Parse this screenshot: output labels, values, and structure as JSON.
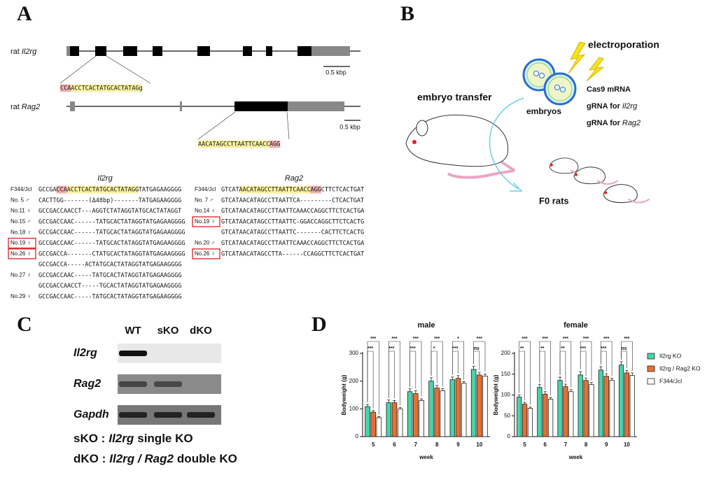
{
  "panel_labels": [
    "A",
    "B",
    "C",
    "D"
  ],
  "panel_a": {
    "genes": [
      {
        "prefix": "rat",
        "name": "Il2rg",
        "scale": "0.5 kbp",
        "guide": [
          {
            "t": "CCA",
            "s": "pam"
          },
          {
            "t": "ACCTCACTATGCACTATAGg",
            "s": "target"
          }
        ]
      },
      {
        "prefix": "rat",
        "name": "Rag2",
        "scale": "0.5 kbp",
        "guide": [
          {
            "t": "AACATAGCCTTAATTCAACC",
            "s": "target"
          },
          {
            "t": "AGG",
            "s": "pam"
          }
        ]
      }
    ],
    "alignments": [
      {
        "gene": "Il2rg",
        "rows": [
          {
            "label": "F344/Jcl",
            "boxed": false,
            "seq": [
              {
                "t": "GCCGA",
                "s": "n"
              },
              {
                "t": "CCA",
                "s": "pam"
              },
              {
                "t": "ACCTCACTATGCACTATAGG",
                "s": "target"
              },
              {
                "t": "TATGAGAAGGGG",
                "s": "n"
              }
            ]
          },
          {
            "label": "No. 5 ♂",
            "boxed": false,
            "seq": [
              {
                "t": "CACTTGG",
                "s": "n"
              },
              {
                "t": "-------(Δ48bp)-------",
                "s": "del"
              },
              {
                "t": "TATGAGAAGGGG",
                "s": "n"
              }
            ]
          },
          {
            "label": "No.11 ♀",
            "boxed": false,
            "seq": [
              {
                "t": "GCCGACCAACCT",
                "s": "n"
              },
              {
                "t": "---",
                "s": "del"
              },
              {
                "t": "AGGTCTATAGG",
                "s": "ins"
              },
              {
                "t": "TATGCACTATAGGT",
                "s": "n"
              }
            ]
          },
          {
            "label": "No.15 ♂",
            "boxed": false,
            "seq": [
              {
                "t": "GCCGACCAAC",
                "s": "n"
              },
              {
                "t": "------",
                "s": "del"
              },
              {
                "t": "TATGCACTATAGGTATGAGAAGGGG",
                "s": "n"
              }
            ]
          },
          {
            "label": "No.18 ♀",
            "boxed": false,
            "seq": [
              {
                "t": "GCCGACCAAC",
                "s": "n"
              },
              {
                "t": "------",
                "s": "del"
              },
              {
                "t": "TATGCACTATAGGTATGAGAAGGGG",
                "s": "n"
              }
            ]
          },
          {
            "label": "No.19 ♀",
            "boxed": true,
            "seq": [
              {
                "t": "GCCGACCAAC",
                "s": "n"
              },
              {
                "t": "------",
                "s": "del"
              },
              {
                "t": "TATGCACTATAGGTATGAGAAGGGG",
                "s": "n"
              }
            ]
          },
          {
            "label": "No.26 ♀",
            "boxed": true,
            "seq": [
              {
                "t": "GCCGACCA",
                "s": "n"
              },
              {
                "t": "-------",
                "s": "del"
              },
              {
                "t": "CTATGCACTATAGGTATGAGAAGGGG",
                "s": "n"
              }
            ]
          },
          {
            "label": null,
            "boxed": false,
            "seq": [
              {
                "t": "GCCGACCA",
                "s": "n"
              },
              {
                "t": "-----",
                "s": "del"
              },
              {
                "t": "ACTATGCACTATAGGTATGAGAAGGGG",
                "s": "n"
              }
            ]
          },
          {
            "label": "No.27 ♀",
            "boxed": false,
            "seq": [
              {
                "t": "GCCGACCAAC",
                "s": "n"
              },
              {
                "t": "-----",
                "s": "del"
              },
              {
                "t": "TATGCACTATAGGTATGAGAAGGGG",
                "s": "n"
              }
            ]
          },
          {
            "label": null,
            "boxed": false,
            "seq": [
              {
                "t": "GCCGACCAACCT",
                "s": "n"
              },
              {
                "t": "-----",
                "s": "del"
              },
              {
                "t": "TGCACTATAGGTATGAGAAGGGG",
                "s": "n"
              }
            ]
          },
          {
            "label": "No.29 ♀",
            "boxed": false,
            "seq": [
              {
                "t": "GCCGACCAAC",
                "s": "n"
              },
              {
                "t": "-----",
                "s": "del"
              },
              {
                "t": "TATGCACTATAGGTATGAGAAGGGG",
                "s": "n"
              }
            ]
          }
        ]
      },
      {
        "gene": "Rag2",
        "rows": [
          {
            "label": "F344/Jcl",
            "boxed": false,
            "seq": [
              {
                "t": "GTCAT",
                "s": "n"
              },
              {
                "t": "AACATAGCCTTAATTCAACC",
                "s": "target"
              },
              {
                "t": "AGG",
                "s": "pam"
              },
              {
                "t": "CTTCTCACTGAT",
                "s": "n"
              }
            ]
          },
          {
            "label": "No. 7 ♂",
            "boxed": false,
            "seq": [
              {
                "t": "GTCATAACATAGCCTTAATTCA",
                "s": "n"
              },
              {
                "t": "---------",
                "s": "del"
              },
              {
                "t": "CTCACTGAT",
                "s": "n"
              }
            ]
          },
          {
            "label": "No.14 ♀",
            "boxed": false,
            "seq": [
              {
                "t": "GTCATAACATAGCCTTAATTC",
                "s": "n"
              },
              {
                "t": "A",
                "s": "ins"
              },
              {
                "t": "AACCAGGCTTCTCACTGA",
                "s": "n"
              }
            ]
          },
          {
            "label": "No.19 ♀",
            "boxed": true,
            "seq": [
              {
                "t": "GTCATAACATAGCCTTAATTC",
                "s": "n"
              },
              {
                "t": "-",
                "s": "del"
              },
              {
                "t": "GG",
                "s": "ins"
              },
              {
                "t": "ACCAGGCTTCTCACTG",
                "s": "n"
              }
            ]
          },
          {
            "label": null,
            "boxed": false,
            "seq": [
              {
                "t": "GTCATAACATAGCCTTAATTC",
                "s": "n"
              },
              {
                "t": "-------",
                "s": "del"
              },
              {
                "t": "CA",
                "s": "ins"
              },
              {
                "t": "CTTCTCACTG",
                "s": "n"
              }
            ]
          },
          {
            "label": "No.20 ♂",
            "boxed": false,
            "seq": [
              {
                "t": "GTCATAACATAGCCTTAATTCAA",
                "s": "n"
              },
              {
                "t": "A",
                "s": "ins"
              },
              {
                "t": "CCAGGCTTCTCACTGA",
                "s": "n"
              }
            ]
          },
          {
            "label": "No.26 ♀",
            "boxed": true,
            "seq": [
              {
                "t": "GTCATAACATAGCCTTA",
                "s": "n"
              },
              {
                "t": "------",
                "s": "del"
              },
              {
                "t": "CCAGGCTTCTCACTGAT",
                "s": "n"
              }
            ]
          }
        ]
      }
    ]
  },
  "panel_b": {
    "electroporation": "electroporation",
    "embryos": "embryos",
    "transfer": "embryo transfer",
    "f0": "F0 rats",
    "reagents": [
      {
        "prefix": "Cas9 mRNA",
        "gene": null
      },
      {
        "prefix": "gRNA for",
        "gene": "Il2rg"
      },
      {
        "prefix": "gRNA for",
        "gene": "Rag2"
      }
    ]
  },
  "panel_c": {
    "lanes": [
      "WT",
      "sKO",
      "dKO"
    ],
    "blots": [
      "Il2rg",
      "Rag2",
      "Gapdh"
    ],
    "notes": [
      [
        "sKO :",
        "Il2rg",
        "single KO"
      ],
      [
        "dKO :",
        "Il2rg / Rag2",
        "double KO"
      ]
    ]
  },
  "chart_data": [
    {
      "type": "bar",
      "title": "male",
      "x_label": "week",
      "y_label": "Bodyweight (g)",
      "categories": [
        "5",
        "6",
        "7",
        "8",
        "9",
        "10"
      ],
      "series": [
        {
          "color": "#48d3aa",
          "values": [
            108,
            122,
            162,
            200,
            205,
            242
          ],
          "errors": [
            8,
            10,
            10,
            12,
            10,
            12
          ]
        },
        {
          "color": "#e8702f",
          "values": [
            88,
            122,
            155,
            175,
            210,
            222
          ],
          "errors": [
            6,
            8,
            10,
            10,
            10,
            10
          ]
        },
        {
          "color": "#ffffff",
          "values": [
            68,
            100,
            130,
            165,
            192,
            218
          ],
          "errors": [
            4,
            5,
            6,
            8,
            6,
            8
          ]
        }
      ],
      "significance": {
        "top": [
          "***",
          "***",
          "***",
          "***",
          "*",
          "***"
        ],
        "bottom": [
          "***",
          "***",
          "***",
          "*",
          "***",
          "ns"
        ]
      },
      "ylim": [
        0,
        300
      ],
      "yticks": [
        0,
        100,
        200,
        300
      ]
    },
    {
      "type": "bar",
      "title": "female",
      "x_label": "week",
      "y_label": "Bodyweight (g)",
      "categories": [
        "5",
        "6",
        "7",
        "8",
        "9",
        "10"
      ],
      "series": [
        {
          "name": "Il2rg KO",
          "color": "#48d3aa",
          "values": [
            95,
            118,
            135,
            148,
            160,
            172
          ],
          "errors": [
            5,
            7,
            8,
            8,
            8,
            8
          ]
        },
        {
          "name": "Il2rg / Rag2 KO",
          "color": "#e8702f",
          "values": [
            78,
            102,
            120,
            135,
            145,
            153
          ],
          "errors": [
            4,
            6,
            6,
            6,
            6,
            6
          ]
        },
        {
          "name": "F344/Jcl",
          "color": "#ffffff",
          "values": [
            68,
            90,
            108,
            125,
            135,
            147
          ],
          "errors": [
            3,
            4,
            5,
            5,
            5,
            6
          ]
        }
      ],
      "significance": {
        "top": [
          "***",
          "***",
          "***",
          "***",
          "***",
          "***"
        ],
        "bottom": [
          "**",
          "**",
          "**",
          "***",
          "***",
          "ns"
        ]
      },
      "ylim": [
        0,
        200
      ],
      "yticks": [
        0,
        50,
        100,
        150,
        200
      ],
      "legend": "right"
    }
  ]
}
